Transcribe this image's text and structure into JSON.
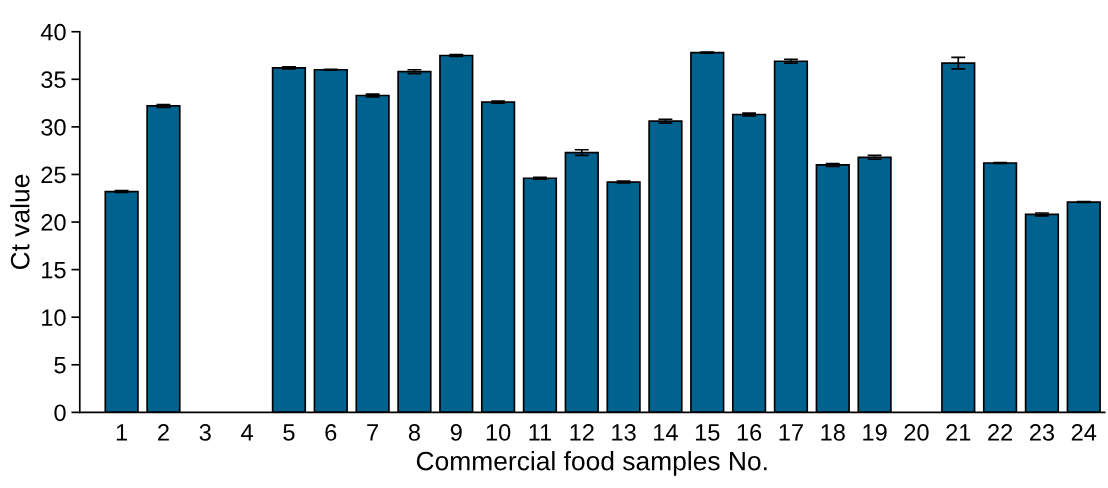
{
  "chart_data": {
    "type": "bar",
    "xlabel": "Commercial food samples No.",
    "ylabel": "Ct value",
    "categories": [
      "1",
      "2",
      "3",
      "4",
      "5",
      "6",
      "7",
      "8",
      "9",
      "10",
      "11",
      "12",
      "13",
      "14",
      "15",
      "16",
      "17",
      "18",
      "19",
      "20",
      "21",
      "22",
      "23",
      "24"
    ],
    "values": [
      23.2,
      32.2,
      null,
      null,
      36.2,
      36.0,
      33.3,
      35.8,
      37.5,
      32.6,
      24.6,
      27.3,
      24.2,
      30.6,
      37.8,
      31.3,
      36.9,
      26.0,
      26.8,
      null,
      36.7,
      26.2,
      20.8,
      22.1
    ],
    "errors": [
      0.1,
      0.15,
      null,
      null,
      0.1,
      0.05,
      0.15,
      0.2,
      0.1,
      0.1,
      0.1,
      0.3,
      0.1,
      0.2,
      0.05,
      0.15,
      0.2,
      0.15,
      0.2,
      null,
      0.6,
      0.05,
      0.15,
      0.05
    ],
    "color": "#00628f",
    "ylim": [
      0,
      40
    ],
    "yticks": [
      0,
      5,
      10,
      15,
      20,
      25,
      30,
      35,
      40
    ],
    "grid": false,
    "legend": false
  }
}
